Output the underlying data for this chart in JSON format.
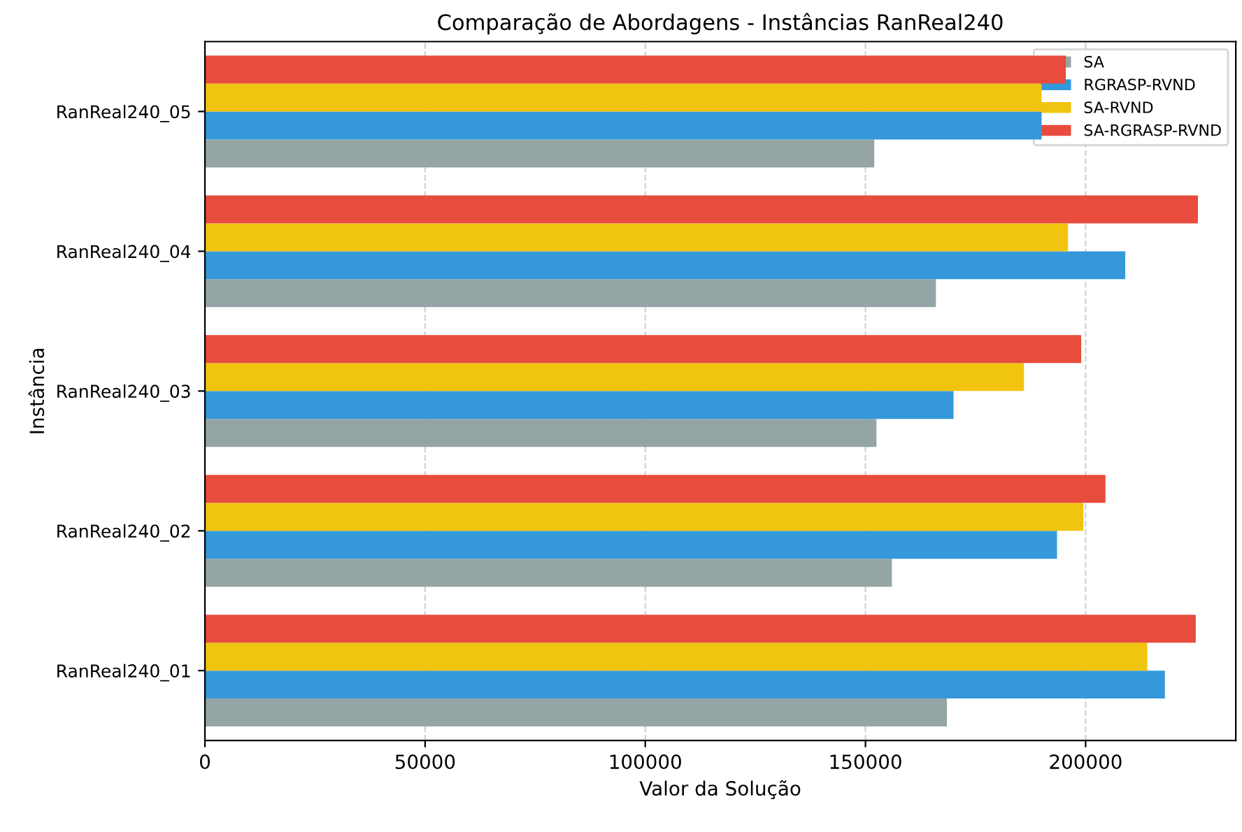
{
  "chart_data": {
    "type": "bar",
    "orientation": "horizontal",
    "title": "Comparação de Abordagens - Instâncias RanReal240",
    "xlabel": "Valor da Solução",
    "ylabel": "Instância",
    "categories": [
      "RanReal240_05",
      "RanReal240_04",
      "RanReal240_03",
      "RanReal240_02",
      "RanReal240_01"
    ],
    "series": [
      {
        "name": "SA",
        "color": "#95a5a6",
        "values": [
          152000,
          166000,
          152500,
          156000,
          168500
        ]
      },
      {
        "name": "RGRASP-RVND",
        "color": "#3498db",
        "values": [
          190000,
          209000,
          170000,
          193500,
          218000
        ]
      },
      {
        "name": "SA-RVND",
        "color": "#f1c40f",
        "values": [
          190000,
          196000,
          186000,
          199500,
          214000
        ]
      },
      {
        "name": "SA-RGRASP-RVND",
        "color": "#e74c3c",
        "values": [
          195500,
          225500,
          199000,
          204500,
          225000
        ]
      }
    ],
    "xlim": [
      0,
      234100
    ],
    "xticks": [
      0,
      50000,
      100000,
      150000,
      200000
    ],
    "grid": "x",
    "legend": "top right"
  }
}
